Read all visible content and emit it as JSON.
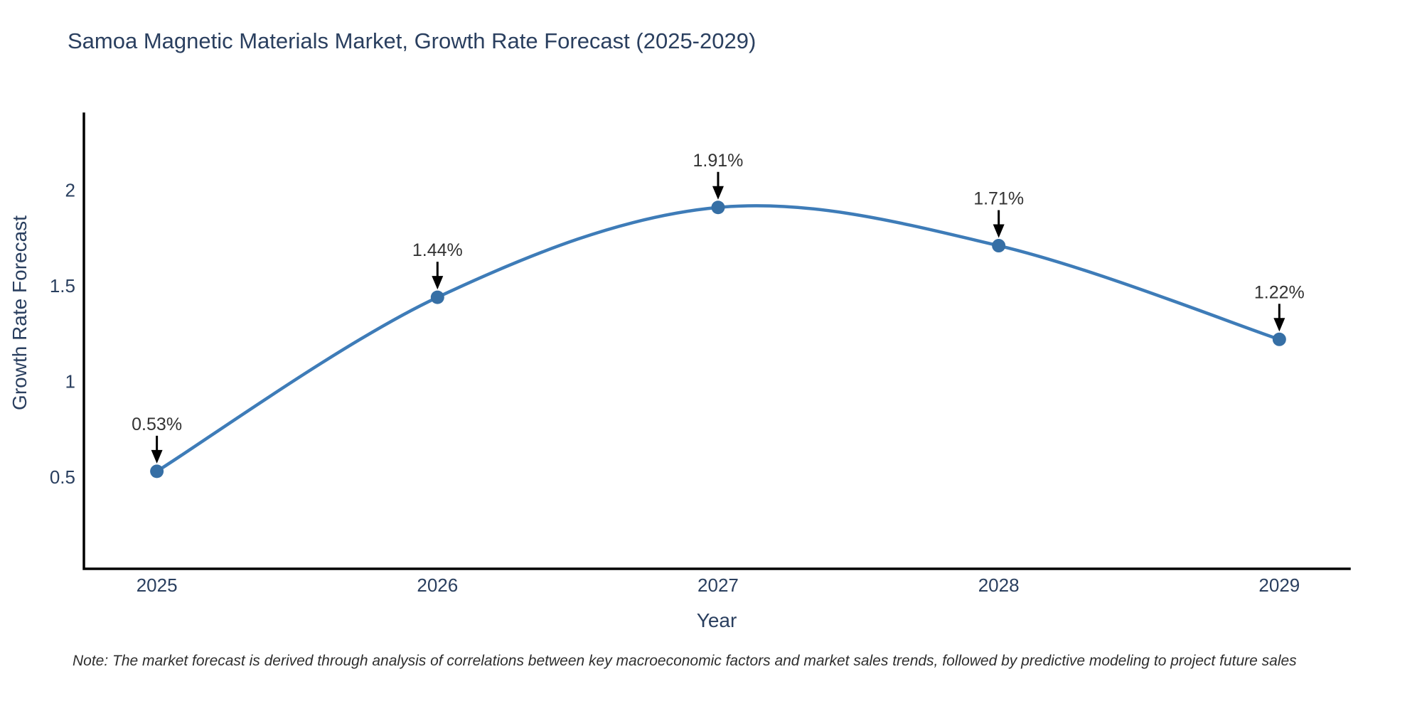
{
  "page": {
    "title": "Samoa Magnetic Materials Market, Growth Rate Forecast (2025-2029)",
    "note": "Note: The market forecast is derived through analysis of correlations between key macroeconomic factors and market sales trends, followed by predictive modeling to project future sales"
  },
  "chart_data": {
    "type": "line",
    "title": "Samoa Magnetic Materials Market, Growth Rate Forecast (2025-2029)",
    "xlabel": "Year",
    "ylabel": "Growth Rate Forecast",
    "x": [
      2025,
      2026,
      2027,
      2028,
      2029
    ],
    "y": [
      0.53,
      1.44,
      1.91,
      1.71,
      1.22
    ],
    "point_labels": [
      "0.53%",
      "1.44%",
      "1.91%",
      "1.71%",
      "1.22%"
    ],
    "xtick_labels": [
      "2025",
      "2026",
      "2027",
      "2028",
      "2029"
    ],
    "ytick_values": [
      0.5,
      1,
      1.5,
      2
    ],
    "ytick_labels": [
      "0.5",
      "1",
      "1.5",
      "2"
    ],
    "xlim": [
      2024.74,
      2029.25
    ],
    "ylim": [
      0.02,
      2.4
    ],
    "line_shape": "spline",
    "grid": false,
    "legend": false,
    "markers": true,
    "annotations_have_arrows": true,
    "colors": {
      "line": "#3e7cb8",
      "marker": "#366fa5",
      "annotation_text": "#333333",
      "arrow": "#000000",
      "axis_line": "#000000",
      "tick_text": "#2a3f5f",
      "title_text": "#2a3f5f",
      "background": "#ffffff"
    }
  }
}
